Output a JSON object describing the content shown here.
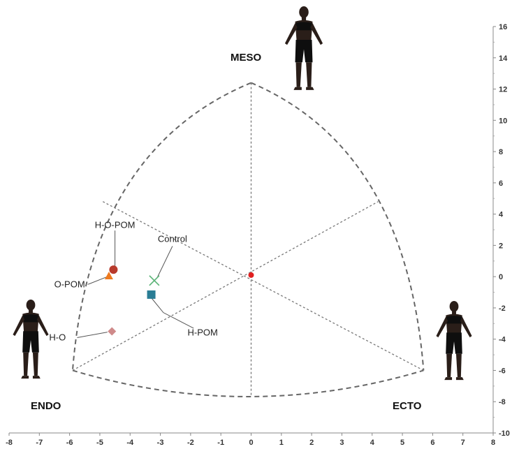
{
  "chart_data": {
    "type": "scatter",
    "title": "",
    "xlabel": "",
    "ylabel": "",
    "xlim": [
      -8,
      8
    ],
    "ylim": [
      -10,
      16
    ],
    "x_ticks": [
      -8,
      -7,
      -6,
      -5,
      -4,
      -3,
      -2,
      -1,
      0,
      1,
      2,
      3,
      4,
      5,
      6,
      7,
      8
    ],
    "y_ticks": [
      -10,
      -8,
      -6,
      -4,
      -2,
      0,
      2,
      4,
      6,
      8,
      10,
      12,
      14,
      16
    ],
    "grid": false,
    "corner_labels": {
      "meso": "MESO",
      "endo": "ENDO",
      "ecto": "ECTO"
    },
    "somatochart_vertices": {
      "meso": [
        0,
        12.4
      ],
      "endo": [
        -5.9,
        -6.0
      ],
      "ecto": [
        5.7,
        -6.0
      ],
      "center": [
        0,
        0.1
      ]
    },
    "points": [
      {
        "label": "H-O-POM",
        "x": -4.55,
        "y": 0.45,
        "marker": "circle",
        "color": "#b83a2c",
        "label_pos": [
          -4.5,
          3.3
        ]
      },
      {
        "label": "O-POM",
        "x": -4.7,
        "y": 0.05,
        "marker": "triangle",
        "color": "#ee7a1e",
        "label_pos": [
          -6.0,
          -0.5
        ]
      },
      {
        "label": "Control",
        "x": -3.2,
        "y": -0.25,
        "marker": "x",
        "color": "#5fb57a",
        "label_pos": [
          -2.6,
          2.4
        ]
      },
      {
        "label": "H-POM",
        "x": -3.3,
        "y": -1.15,
        "marker": "square",
        "color": "#2a7d95",
        "label_pos": [
          -1.6,
          -3.6
        ]
      },
      {
        "label": "H-O",
        "x": -4.6,
        "y": -3.5,
        "marker": "diamond",
        "color": "#cf8a8a",
        "label_pos": [
          -6.4,
          -3.9
        ]
      }
    ],
    "center_point": {
      "x": 0,
      "y": 0.1,
      "color": "#e02020"
    }
  },
  "figures": [
    {
      "name": "meso-figure",
      "icon": "female-figure-icon"
    },
    {
      "name": "endo-figure",
      "icon": "female-figure-icon"
    },
    {
      "name": "ecto-figure",
      "icon": "female-figure-icon"
    }
  ]
}
